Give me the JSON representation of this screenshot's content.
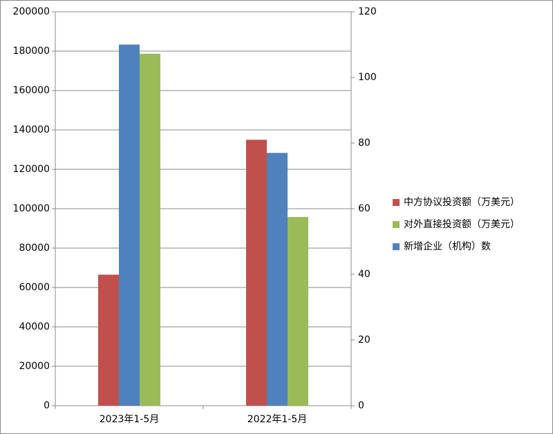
{
  "chart_data": {
    "type": "bar",
    "categories": [
      "2023年1-5月",
      "2022年1-5月"
    ],
    "series": [
      {
        "name": "中方协议投资额（万美元）",
        "color": "#c0504d",
        "values": [
          66500,
          135000
        ]
      },
      {
        "name": "对外直接投资额（万美元）",
        "color": "#9bbb59",
        "values": [
          178700,
          95800
        ]
      },
      {
        "name": "新增企业（机构）数",
        "color": "#4f81bd",
        "values": [
          110,
          77
        ],
        "axis": "y2"
      }
    ],
    "ylim": [
      0,
      200000
    ],
    "yticks": [
      0,
      20000,
      40000,
      60000,
      80000,
      100000,
      120000,
      140000,
      160000,
      180000,
      200000
    ],
    "y2lim": [
      0,
      120
    ],
    "y2ticks": [
      0,
      20,
      40,
      60,
      80,
      100,
      120
    ],
    "grid": true,
    "legend": "right"
  }
}
